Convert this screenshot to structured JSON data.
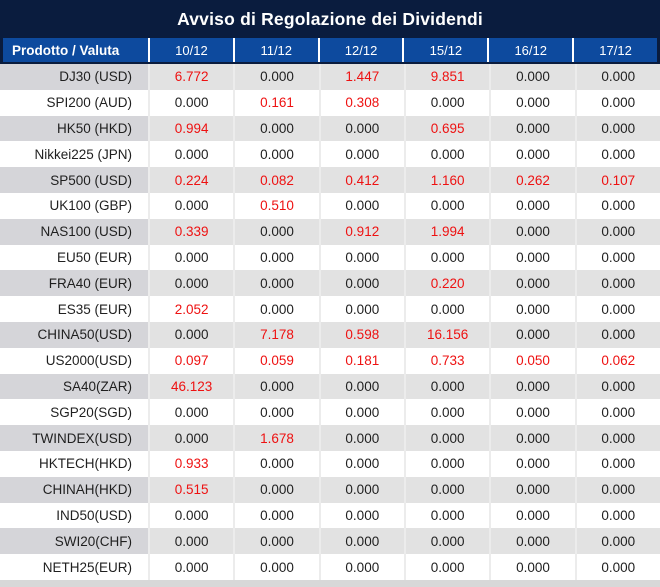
{
  "title": "Avviso di Regolazione dei Dividendi",
  "colors": {
    "title_bar_navy": "#0a1c3e",
    "header_blue": "#0d4a9e",
    "stripe_row_gray": "#e2e2e2",
    "stripe_label_gray": "#d5d5d9",
    "highlight_red": "#ee1111",
    "text_black": "#1f1f1f",
    "footer_strip_gray": "#d8d8d8"
  },
  "table": {
    "product_header": "Prodotto / Valuta",
    "date_headers": [
      "10/12",
      "11/12",
      "12/12",
      "15/12",
      "16/12",
      "17/12"
    ],
    "rows": [
      {
        "product": "DJ30 (USD)",
        "values": [
          {
            "v": "6.772",
            "red": true
          },
          {
            "v": "0.000",
            "red": false
          },
          {
            "v": "1.447",
            "red": true
          },
          {
            "v": "9.851",
            "red": true
          },
          {
            "v": "0.000",
            "red": false
          },
          {
            "v": "0.000",
            "red": false
          }
        ]
      },
      {
        "product": "SPI200 (AUD)",
        "values": [
          {
            "v": "0.000",
            "red": false
          },
          {
            "v": "0.161",
            "red": true
          },
          {
            "v": "0.308",
            "red": true
          },
          {
            "v": "0.000",
            "red": false
          },
          {
            "v": "0.000",
            "red": false
          },
          {
            "v": "0.000",
            "red": false
          }
        ]
      },
      {
        "product": "HK50 (HKD)",
        "values": [
          {
            "v": "0.994",
            "red": true
          },
          {
            "v": "0.000",
            "red": false
          },
          {
            "v": "0.000",
            "red": false
          },
          {
            "v": "0.695",
            "red": true
          },
          {
            "v": "0.000",
            "red": false
          },
          {
            "v": "0.000",
            "red": false
          }
        ]
      },
      {
        "product": "Nikkei225 (JPN)",
        "values": [
          {
            "v": "0.000",
            "red": false
          },
          {
            "v": "0.000",
            "red": false
          },
          {
            "v": "0.000",
            "red": false
          },
          {
            "v": "0.000",
            "red": false
          },
          {
            "v": "0.000",
            "red": false
          },
          {
            "v": "0.000",
            "red": false
          }
        ]
      },
      {
        "product": "SP500 (USD)",
        "values": [
          {
            "v": "0.224",
            "red": true
          },
          {
            "v": "0.082",
            "red": true
          },
          {
            "v": "0.412",
            "red": true
          },
          {
            "v": "1.160",
            "red": true
          },
          {
            "v": "0.262",
            "red": true
          },
          {
            "v": "0.107",
            "red": true
          }
        ]
      },
      {
        "product": "UK100 (GBP)",
        "values": [
          {
            "v": "0.000",
            "red": false
          },
          {
            "v": "0.510",
            "red": true
          },
          {
            "v": "0.000",
            "red": false
          },
          {
            "v": "0.000",
            "red": false
          },
          {
            "v": "0.000",
            "red": false
          },
          {
            "v": "0.000",
            "red": false
          }
        ]
      },
      {
        "product": "NAS100 (USD)",
        "values": [
          {
            "v": "0.339",
            "red": true
          },
          {
            "v": "0.000",
            "red": false
          },
          {
            "v": "0.912",
            "red": true
          },
          {
            "v": "1.994",
            "red": true
          },
          {
            "v": "0.000",
            "red": false
          },
          {
            "v": "0.000",
            "red": false
          }
        ]
      },
      {
        "product": "EU50 (EUR)",
        "values": [
          {
            "v": "0.000",
            "red": false
          },
          {
            "v": "0.000",
            "red": false
          },
          {
            "v": "0.000",
            "red": false
          },
          {
            "v": "0.000",
            "red": false
          },
          {
            "v": "0.000",
            "red": false
          },
          {
            "v": "0.000",
            "red": false
          }
        ]
      },
      {
        "product": "FRA40 (EUR)",
        "values": [
          {
            "v": "0.000",
            "red": false
          },
          {
            "v": "0.000",
            "red": false
          },
          {
            "v": "0.000",
            "red": false
          },
          {
            "v": "0.220",
            "red": true
          },
          {
            "v": "0.000",
            "red": false
          },
          {
            "v": "0.000",
            "red": false
          }
        ]
      },
      {
        "product": "ES35 (EUR)",
        "values": [
          {
            "v": "2.052",
            "red": true
          },
          {
            "v": "0.000",
            "red": false
          },
          {
            "v": "0.000",
            "red": false
          },
          {
            "v": "0.000",
            "red": false
          },
          {
            "v": "0.000",
            "red": false
          },
          {
            "v": "0.000",
            "red": false
          }
        ]
      },
      {
        "product": "CHINA50(USD)",
        "values": [
          {
            "v": "0.000",
            "red": false
          },
          {
            "v": "7.178",
            "red": true
          },
          {
            "v": "0.598",
            "red": true
          },
          {
            "v": "16.156",
            "red": true
          },
          {
            "v": "0.000",
            "red": false
          },
          {
            "v": "0.000",
            "red": false
          }
        ]
      },
      {
        "product": "US2000(USD)",
        "values": [
          {
            "v": "0.097",
            "red": true
          },
          {
            "v": "0.059",
            "red": true
          },
          {
            "v": "0.181",
            "red": true
          },
          {
            "v": "0.733",
            "red": true
          },
          {
            "v": "0.050",
            "red": true
          },
          {
            "v": "0.062",
            "red": true
          }
        ]
      },
      {
        "product": "SA40(ZAR)",
        "values": [
          {
            "v": "46.123",
            "red": true
          },
          {
            "v": "0.000",
            "red": false
          },
          {
            "v": "0.000",
            "red": false
          },
          {
            "v": "0.000",
            "red": false
          },
          {
            "v": "0.000",
            "red": false
          },
          {
            "v": "0.000",
            "red": false
          }
        ]
      },
      {
        "product": "SGP20(SGD)",
        "values": [
          {
            "v": "0.000",
            "red": false
          },
          {
            "v": "0.000",
            "red": false
          },
          {
            "v": "0.000",
            "red": false
          },
          {
            "v": "0.000",
            "red": false
          },
          {
            "v": "0.000",
            "red": false
          },
          {
            "v": "0.000",
            "red": false
          }
        ]
      },
      {
        "product": "TWINDEX(USD)",
        "values": [
          {
            "v": "0.000",
            "red": false
          },
          {
            "v": "1.678",
            "red": true
          },
          {
            "v": "0.000",
            "red": false
          },
          {
            "v": "0.000",
            "red": false
          },
          {
            "v": "0.000",
            "red": false
          },
          {
            "v": "0.000",
            "red": false
          }
        ]
      },
      {
        "product": "HKTECH(HKD)",
        "values": [
          {
            "v": "0.933",
            "red": true
          },
          {
            "v": "0.000",
            "red": false
          },
          {
            "v": "0.000",
            "red": false
          },
          {
            "v": "0.000",
            "red": false
          },
          {
            "v": "0.000",
            "red": false
          },
          {
            "v": "0.000",
            "red": false
          }
        ]
      },
      {
        "product": "CHINAH(HKD)",
        "values": [
          {
            "v": "0.515",
            "red": true
          },
          {
            "v": "0.000",
            "red": false
          },
          {
            "v": "0.000",
            "red": false
          },
          {
            "v": "0.000",
            "red": false
          },
          {
            "v": "0.000",
            "red": false
          },
          {
            "v": "0.000",
            "red": false
          }
        ]
      },
      {
        "product": "IND50(USD)",
        "values": [
          {
            "v": "0.000",
            "red": false
          },
          {
            "v": "0.000",
            "red": false
          },
          {
            "v": "0.000",
            "red": false
          },
          {
            "v": "0.000",
            "red": false
          },
          {
            "v": "0.000",
            "red": false
          },
          {
            "v": "0.000",
            "red": false
          }
        ]
      },
      {
        "product": "SWI20(CHF)",
        "values": [
          {
            "v": "0.000",
            "red": false
          },
          {
            "v": "0.000",
            "red": false
          },
          {
            "v": "0.000",
            "red": false
          },
          {
            "v": "0.000",
            "red": false
          },
          {
            "v": "0.000",
            "red": false
          },
          {
            "v": "0.000",
            "red": false
          }
        ]
      },
      {
        "product": "NETH25(EUR)",
        "values": [
          {
            "v": "0.000",
            "red": false
          },
          {
            "v": "0.000",
            "red": false
          },
          {
            "v": "0.000",
            "red": false
          },
          {
            "v": "0.000",
            "red": false
          },
          {
            "v": "0.000",
            "red": false
          },
          {
            "v": "0.000",
            "red": false
          }
        ]
      }
    ]
  }
}
